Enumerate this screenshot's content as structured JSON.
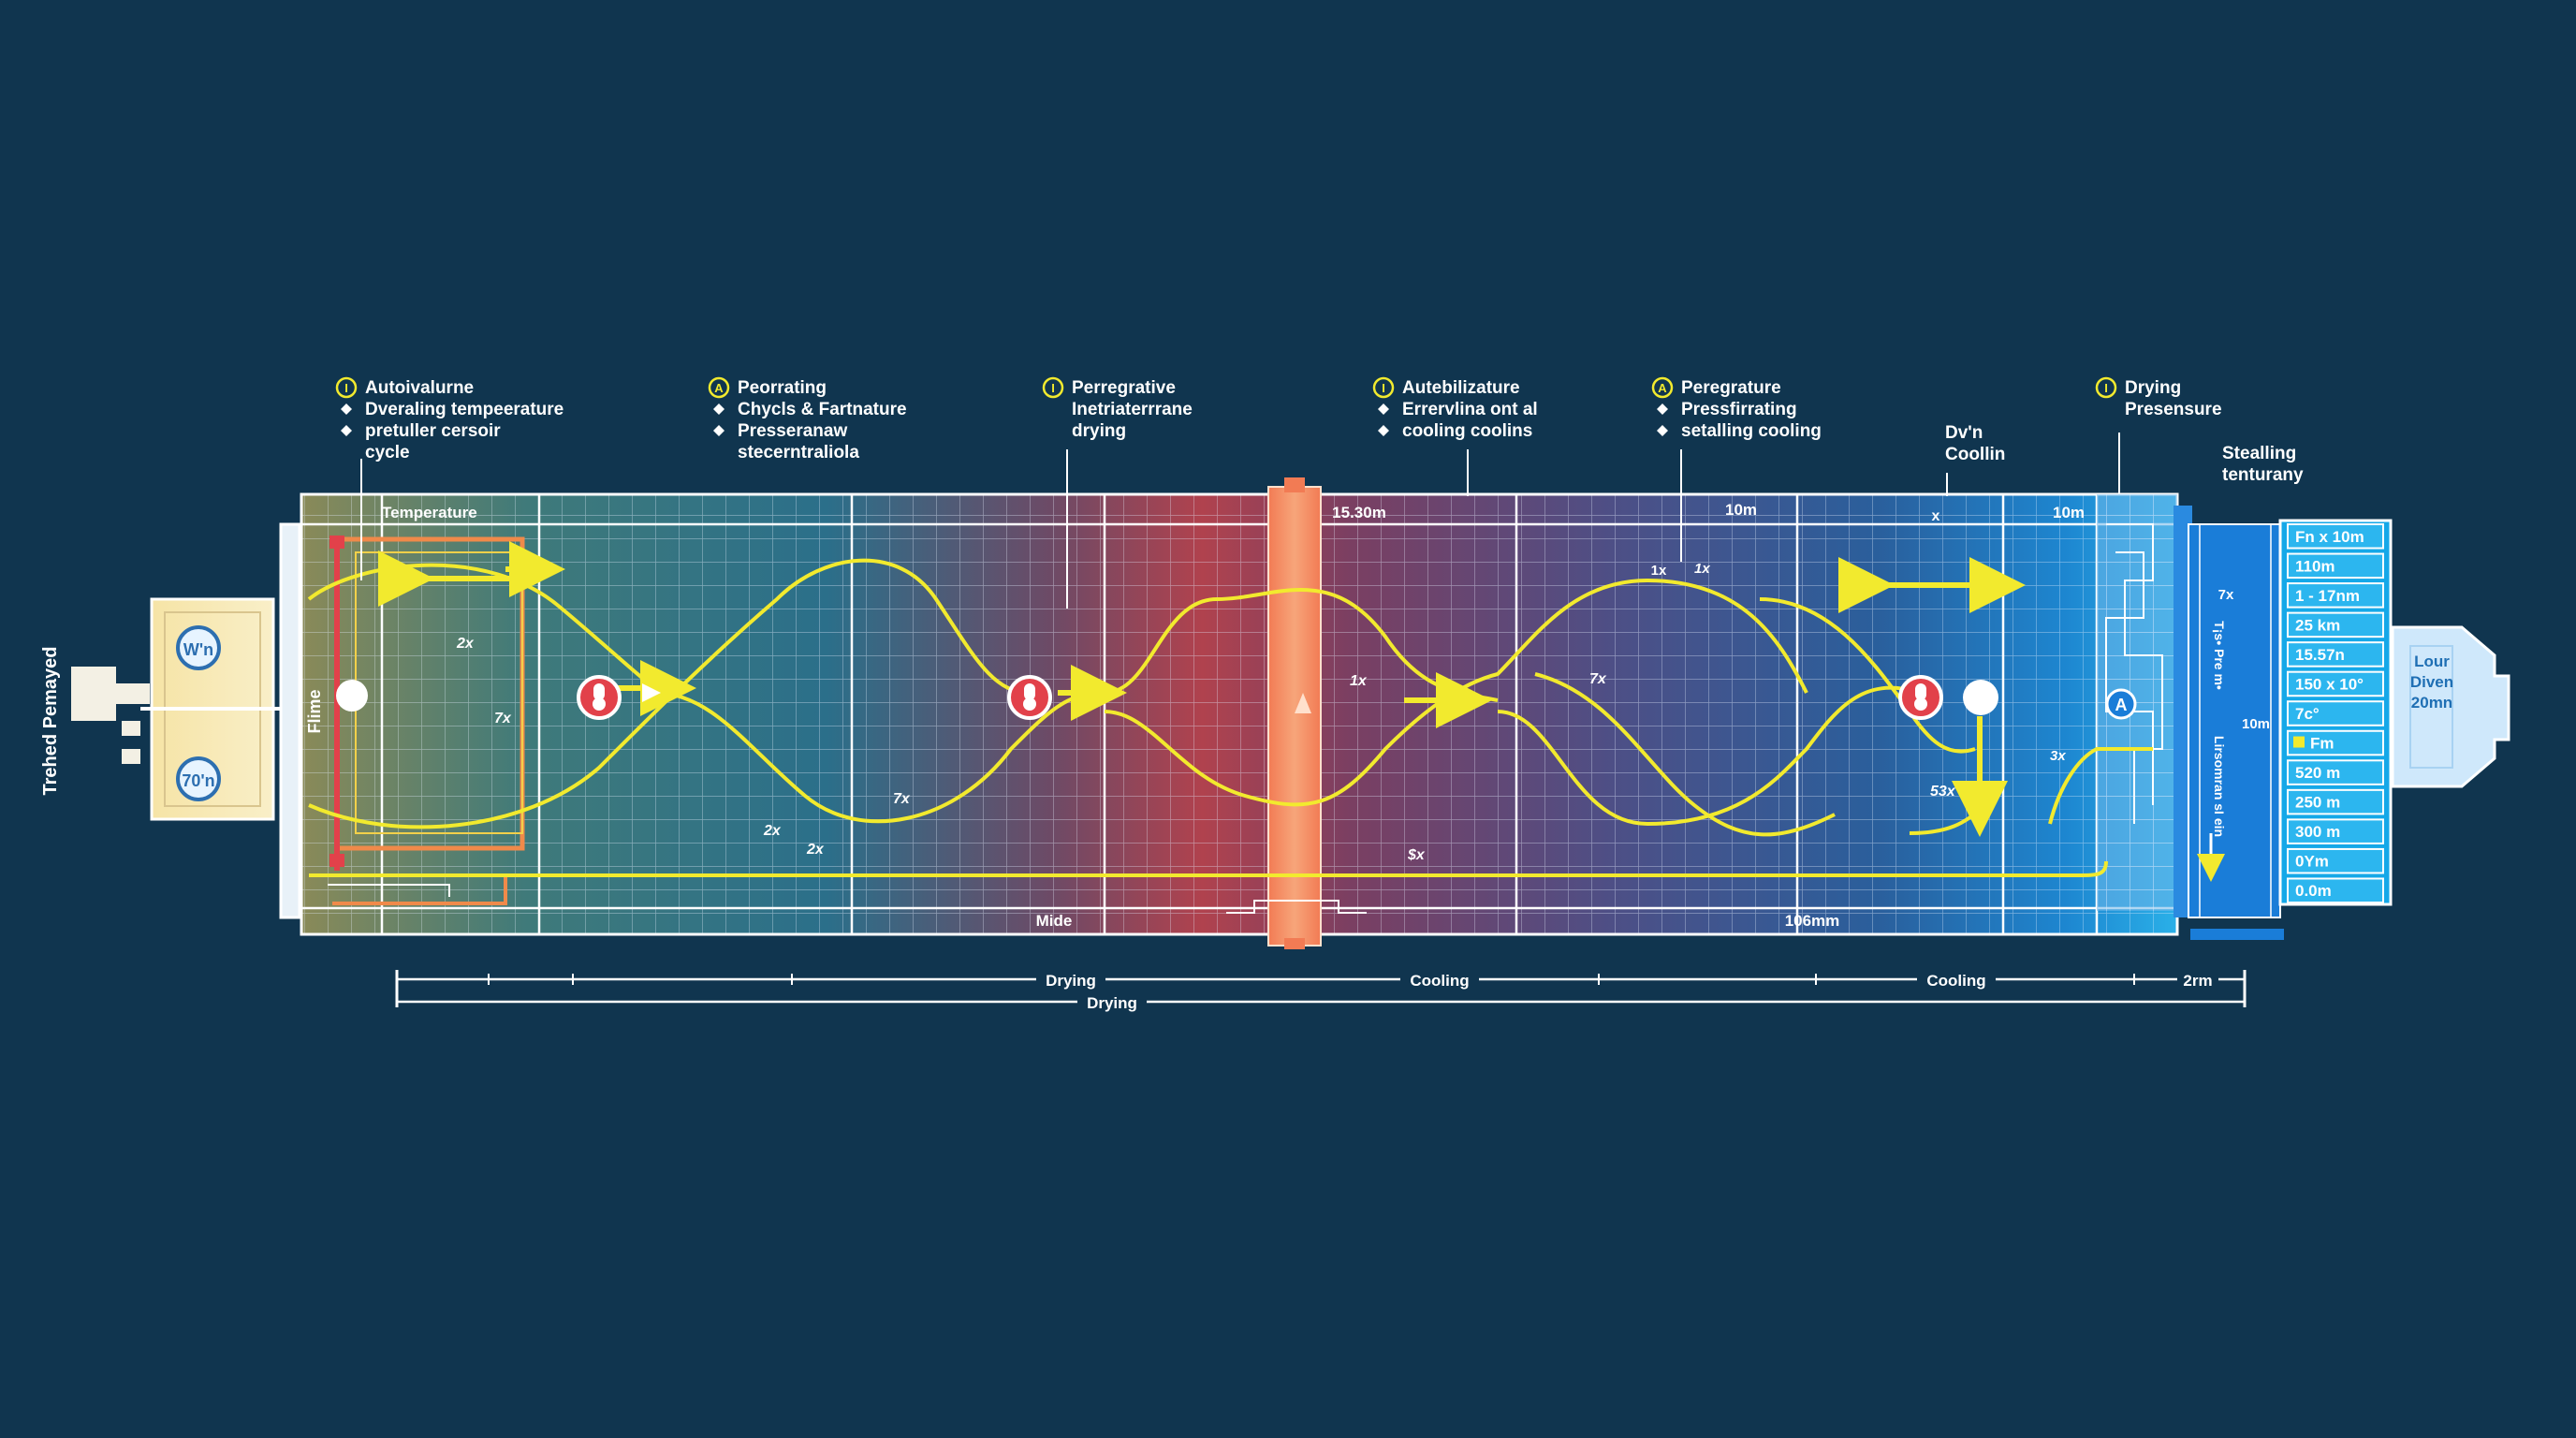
{
  "side_label": "Trehed Pemayed",
  "callouts": [
    {
      "badge": "I",
      "lines": [
        "Autoivalurne",
        "Dveraling tempeerature",
        "pretuller cersoir",
        "cycle"
      ],
      "bullets": [
        false,
        true,
        true,
        false
      ]
    },
    {
      "badge": "A",
      "lines": [
        "Peorrating",
        "Chycls & Fartnature",
        "Presseranaw",
        "stecerntraliola"
      ],
      "bullets": [
        false,
        true,
        true,
        false
      ]
    },
    {
      "badge": "I",
      "lines": [
        "Perregrative",
        "Inetriaterrrane",
        "drying"
      ],
      "bullets": [
        false,
        false,
        false
      ]
    },
    {
      "badge": "I",
      "lines": [
        "Autebilizature",
        "Errervlina ont al",
        "cooling coolins"
      ],
      "bullets": [
        false,
        true,
        true
      ]
    },
    {
      "badge": "A",
      "lines": [
        "Peregrature",
        "Pressfirrating",
        "setalling cooling"
      ],
      "bullets": [
        false,
        true,
        true
      ]
    },
    {
      "badge": "",
      "lines": [
        "Dv'n",
        "Coollin"
      ],
      "bullets": [
        false,
        false
      ]
    },
    {
      "badge": "I",
      "lines": [
        "Drying",
        "Presensure"
      ],
      "bullets": [
        false,
        false
      ]
    },
    {
      "badge": "",
      "lines": [
        "Stealling",
        "tenturany"
      ],
      "bullets": [
        false,
        false
      ]
    }
  ],
  "inner_labels": {
    "temperature": "Temperature",
    "flame": "Flime",
    "mide": "Mide",
    "bottom_mm": "106mm",
    "dim_1530": "15.30m",
    "dim_10m_a": "10m",
    "dim_10m_b": "10m",
    "x_a": "x",
    "x_b": "1x",
    "mult": [
      "2x",
      "7x",
      "2x",
      "2x",
      "7x",
      "1x",
      "7x",
      "$x",
      "53x",
      "3x",
      "1x"
    ]
  },
  "left_unit": {
    "gauge_top": "W'n",
    "gauge_bottom": "70'n"
  },
  "right_unit": {
    "label": [
      "Lour",
      "Diven",
      "20mn"
    ]
  },
  "side_panel_vertical": [
    "T¡s• Pre m•",
    "Lirsomran sI ein"
  ],
  "side_panel_small": [
    "7x",
    "10m"
  ],
  "spec_table": [
    "Fn x 10m",
    "110m",
    "1 - 17nm",
    "25 km",
    "15.57n",
    "150 x 10°",
    "7c°",
    "Fm",
    "520 m",
    "250 m",
    "300 m",
    "0Ym",
    "0.0m"
  ],
  "timeline_top": [
    "Drying",
    "Cooling",
    "Cooling",
    "2rm"
  ],
  "timeline_bottom": [
    "Drying"
  ],
  "colors": {
    "background": "#10354f",
    "arrow": "#f2ea2e",
    "marker_red": "#e2414a",
    "hot_band": "#f08a5c",
    "table_bg": "#15a8e8"
  }
}
